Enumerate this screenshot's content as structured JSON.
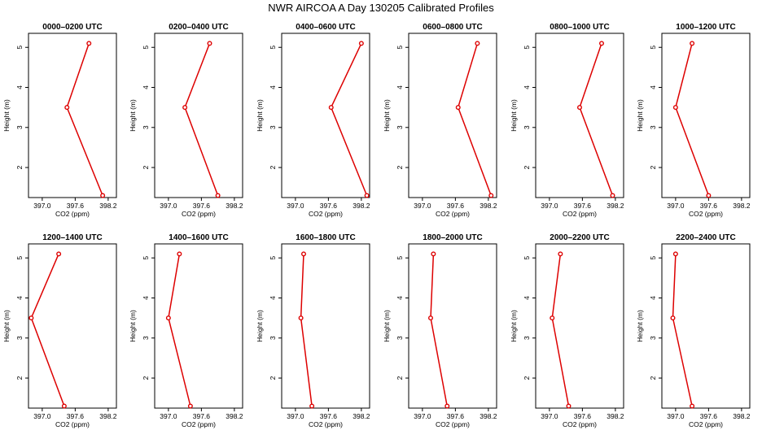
{
  "title": "NWR AIRCOA A  Day 130205  Calibrated Profiles",
  "colors": {
    "series": "#dd0000",
    "axis": "#000000",
    "background": "#ffffff"
  },
  "chart_data": {
    "type": "line",
    "layout": "small-multiples 2x6",
    "xlabel": "CO2 (ppm)",
    "ylabel": "Height (m)",
    "xlim": [
      396.75,
      398.35
    ],
    "ylim": [
      1.25,
      5.35
    ],
    "xticks": [
      397.0,
      397.6,
      398.2
    ],
    "xtick_labels": [
      "397.0",
      "397.6",
      "398.2"
    ],
    "yticks": [
      2,
      3,
      4,
      5
    ],
    "ytick_labels": [
      "2",
      "3",
      "4",
      "5"
    ],
    "panels": [
      {
        "title": "0000–0200 UTC",
        "points": [
          {
            "co2": 398.1,
            "height": 1.3
          },
          {
            "co2": 397.45,
            "height": 3.5
          },
          {
            "co2": 397.85,
            "height": 5.1
          }
        ]
      },
      {
        "title": "0200–0400 UTC",
        "points": [
          {
            "co2": 397.9,
            "height": 1.3
          },
          {
            "co2": 397.3,
            "height": 3.5
          },
          {
            "co2": 397.75,
            "height": 5.1
          }
        ]
      },
      {
        "title": "0400–0600 UTC",
        "points": [
          {
            "co2": 398.3,
            "height": 1.3
          },
          {
            "co2": 397.65,
            "height": 3.5
          },
          {
            "co2": 398.2,
            "height": 5.1
          }
        ]
      },
      {
        "title": "0600–0800 UTC",
        "points": [
          {
            "co2": 398.25,
            "height": 1.3
          },
          {
            "co2": 397.65,
            "height": 3.5
          },
          {
            "co2": 398.0,
            "height": 5.1
          }
        ]
      },
      {
        "title": "0800–1000 UTC",
        "points": [
          {
            "co2": 398.15,
            "height": 1.3
          },
          {
            "co2": 397.55,
            "height": 3.5
          },
          {
            "co2": 397.95,
            "height": 5.1
          }
        ]
      },
      {
        "title": "1000–1200 UTC",
        "points": [
          {
            "co2": 397.6,
            "height": 1.3
          },
          {
            "co2": 397.0,
            "height": 3.5
          },
          {
            "co2": 397.3,
            "height": 5.1
          }
        ]
      },
      {
        "title": "1200–1400 UTC",
        "points": [
          {
            "co2": 397.4,
            "height": 1.3
          },
          {
            "co2": 396.8,
            "height": 3.5
          },
          {
            "co2": 397.3,
            "height": 5.1
          }
        ]
      },
      {
        "title": "1400–1600 UTC",
        "points": [
          {
            "co2": 397.4,
            "height": 1.3
          },
          {
            "co2": 397.0,
            "height": 3.5
          },
          {
            "co2": 397.2,
            "height": 5.1
          }
        ]
      },
      {
        "title": "1600–1800 UTC",
        "points": [
          {
            "co2": 397.3,
            "height": 1.3
          },
          {
            "co2": 397.1,
            "height": 3.5
          },
          {
            "co2": 397.15,
            "height": 5.1
          }
        ]
      },
      {
        "title": "1800–2000 UTC",
        "points": [
          {
            "co2": 397.45,
            "height": 1.3
          },
          {
            "co2": 397.15,
            "height": 3.5
          },
          {
            "co2": 397.2,
            "height": 5.1
          }
        ]
      },
      {
        "title": "2000–2200 UTC",
        "points": [
          {
            "co2": 397.35,
            "height": 1.3
          },
          {
            "co2": 397.05,
            "height": 3.5
          },
          {
            "co2": 397.2,
            "height": 5.1
          }
        ]
      },
      {
        "title": "2200–2400 UTC",
        "points": [
          {
            "co2": 397.3,
            "height": 1.3
          },
          {
            "co2": 396.95,
            "height": 3.5
          },
          {
            "co2": 397.0,
            "height": 5.1
          }
        ]
      }
    ]
  }
}
